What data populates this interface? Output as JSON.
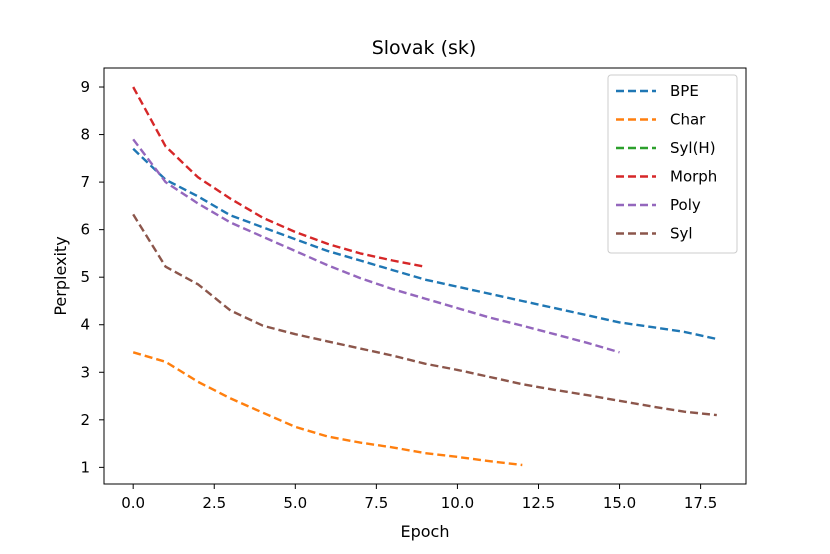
{
  "chart_data": {
    "type": "line",
    "title": "Slovak (sk)",
    "xlabel": "Epoch",
    "ylabel": "Perplexity",
    "xlim": [
      -0.9,
      18.9
    ],
    "ylim": [
      0.65,
      9.4
    ],
    "xticks": [
      0.0,
      2.5,
      5.0,
      7.5,
      10.0,
      12.5,
      15.0,
      17.5
    ],
    "xtick_labels": [
      "0.0",
      "2.5",
      "5.0",
      "7.5",
      "10.0",
      "12.5",
      "15.0",
      "17.5"
    ],
    "yticks": [
      1,
      2,
      3,
      4,
      5,
      6,
      7,
      8,
      9
    ],
    "ytick_labels": [
      "1",
      "2",
      "3",
      "4",
      "5",
      "6",
      "7",
      "8",
      "9"
    ],
    "grid": false,
    "legend_position": "top-right",
    "line_style": "dashed",
    "series": [
      {
        "name": "BPE",
        "color": "#1f77b4",
        "x": [
          0,
          1,
          2,
          3,
          4,
          5,
          6,
          7,
          8,
          9,
          10,
          11,
          12,
          13,
          14,
          15,
          16,
          17,
          18
        ],
        "y": [
          7.7,
          7.05,
          6.7,
          6.3,
          6.05,
          5.8,
          5.55,
          5.35,
          5.15,
          4.95,
          4.8,
          4.65,
          4.5,
          4.35,
          4.2,
          4.05,
          3.95,
          3.85,
          3.7
        ]
      },
      {
        "name": "Char",
        "color": "#ff7f0e",
        "x": [
          0,
          1,
          2,
          3,
          4,
          5,
          6,
          7,
          8,
          9,
          10,
          11,
          12
        ],
        "y": [
          3.42,
          3.22,
          2.8,
          2.45,
          2.15,
          1.85,
          1.65,
          1.52,
          1.42,
          1.3,
          1.22,
          1.13,
          1.05
        ]
      },
      {
        "name": "Syl(H)",
        "color": "#2ca02c",
        "x": [],
        "y": []
      },
      {
        "name": "Morph",
        "color": "#d62728",
        "x": [
          0,
          1,
          2,
          3,
          4,
          5,
          6,
          7,
          8,
          9
        ],
        "y": [
          9.0,
          7.75,
          7.1,
          6.65,
          6.25,
          5.95,
          5.7,
          5.5,
          5.35,
          5.22
        ]
      },
      {
        "name": "Poly",
        "color": "#9467bd",
        "x": [
          0,
          1,
          2,
          3,
          4,
          5,
          6,
          7,
          8,
          9,
          10,
          11,
          12,
          13,
          14,
          15
        ],
        "y": [
          7.9,
          7.0,
          6.55,
          6.15,
          5.85,
          5.55,
          5.25,
          4.98,
          4.75,
          4.55,
          4.35,
          4.15,
          3.98,
          3.8,
          3.62,
          3.42
        ]
      },
      {
        "name": "Syl",
        "color": "#8c564b",
        "x": [
          0,
          1,
          2,
          3,
          4,
          5,
          6,
          7,
          8,
          9,
          10,
          11,
          12,
          13,
          14,
          15,
          16,
          17,
          18
        ],
        "y": [
          6.32,
          5.22,
          4.85,
          4.3,
          3.98,
          3.8,
          3.65,
          3.5,
          3.35,
          3.18,
          3.05,
          2.9,
          2.75,
          2.63,
          2.52,
          2.4,
          2.28,
          2.17,
          2.1
        ]
      }
    ]
  }
}
